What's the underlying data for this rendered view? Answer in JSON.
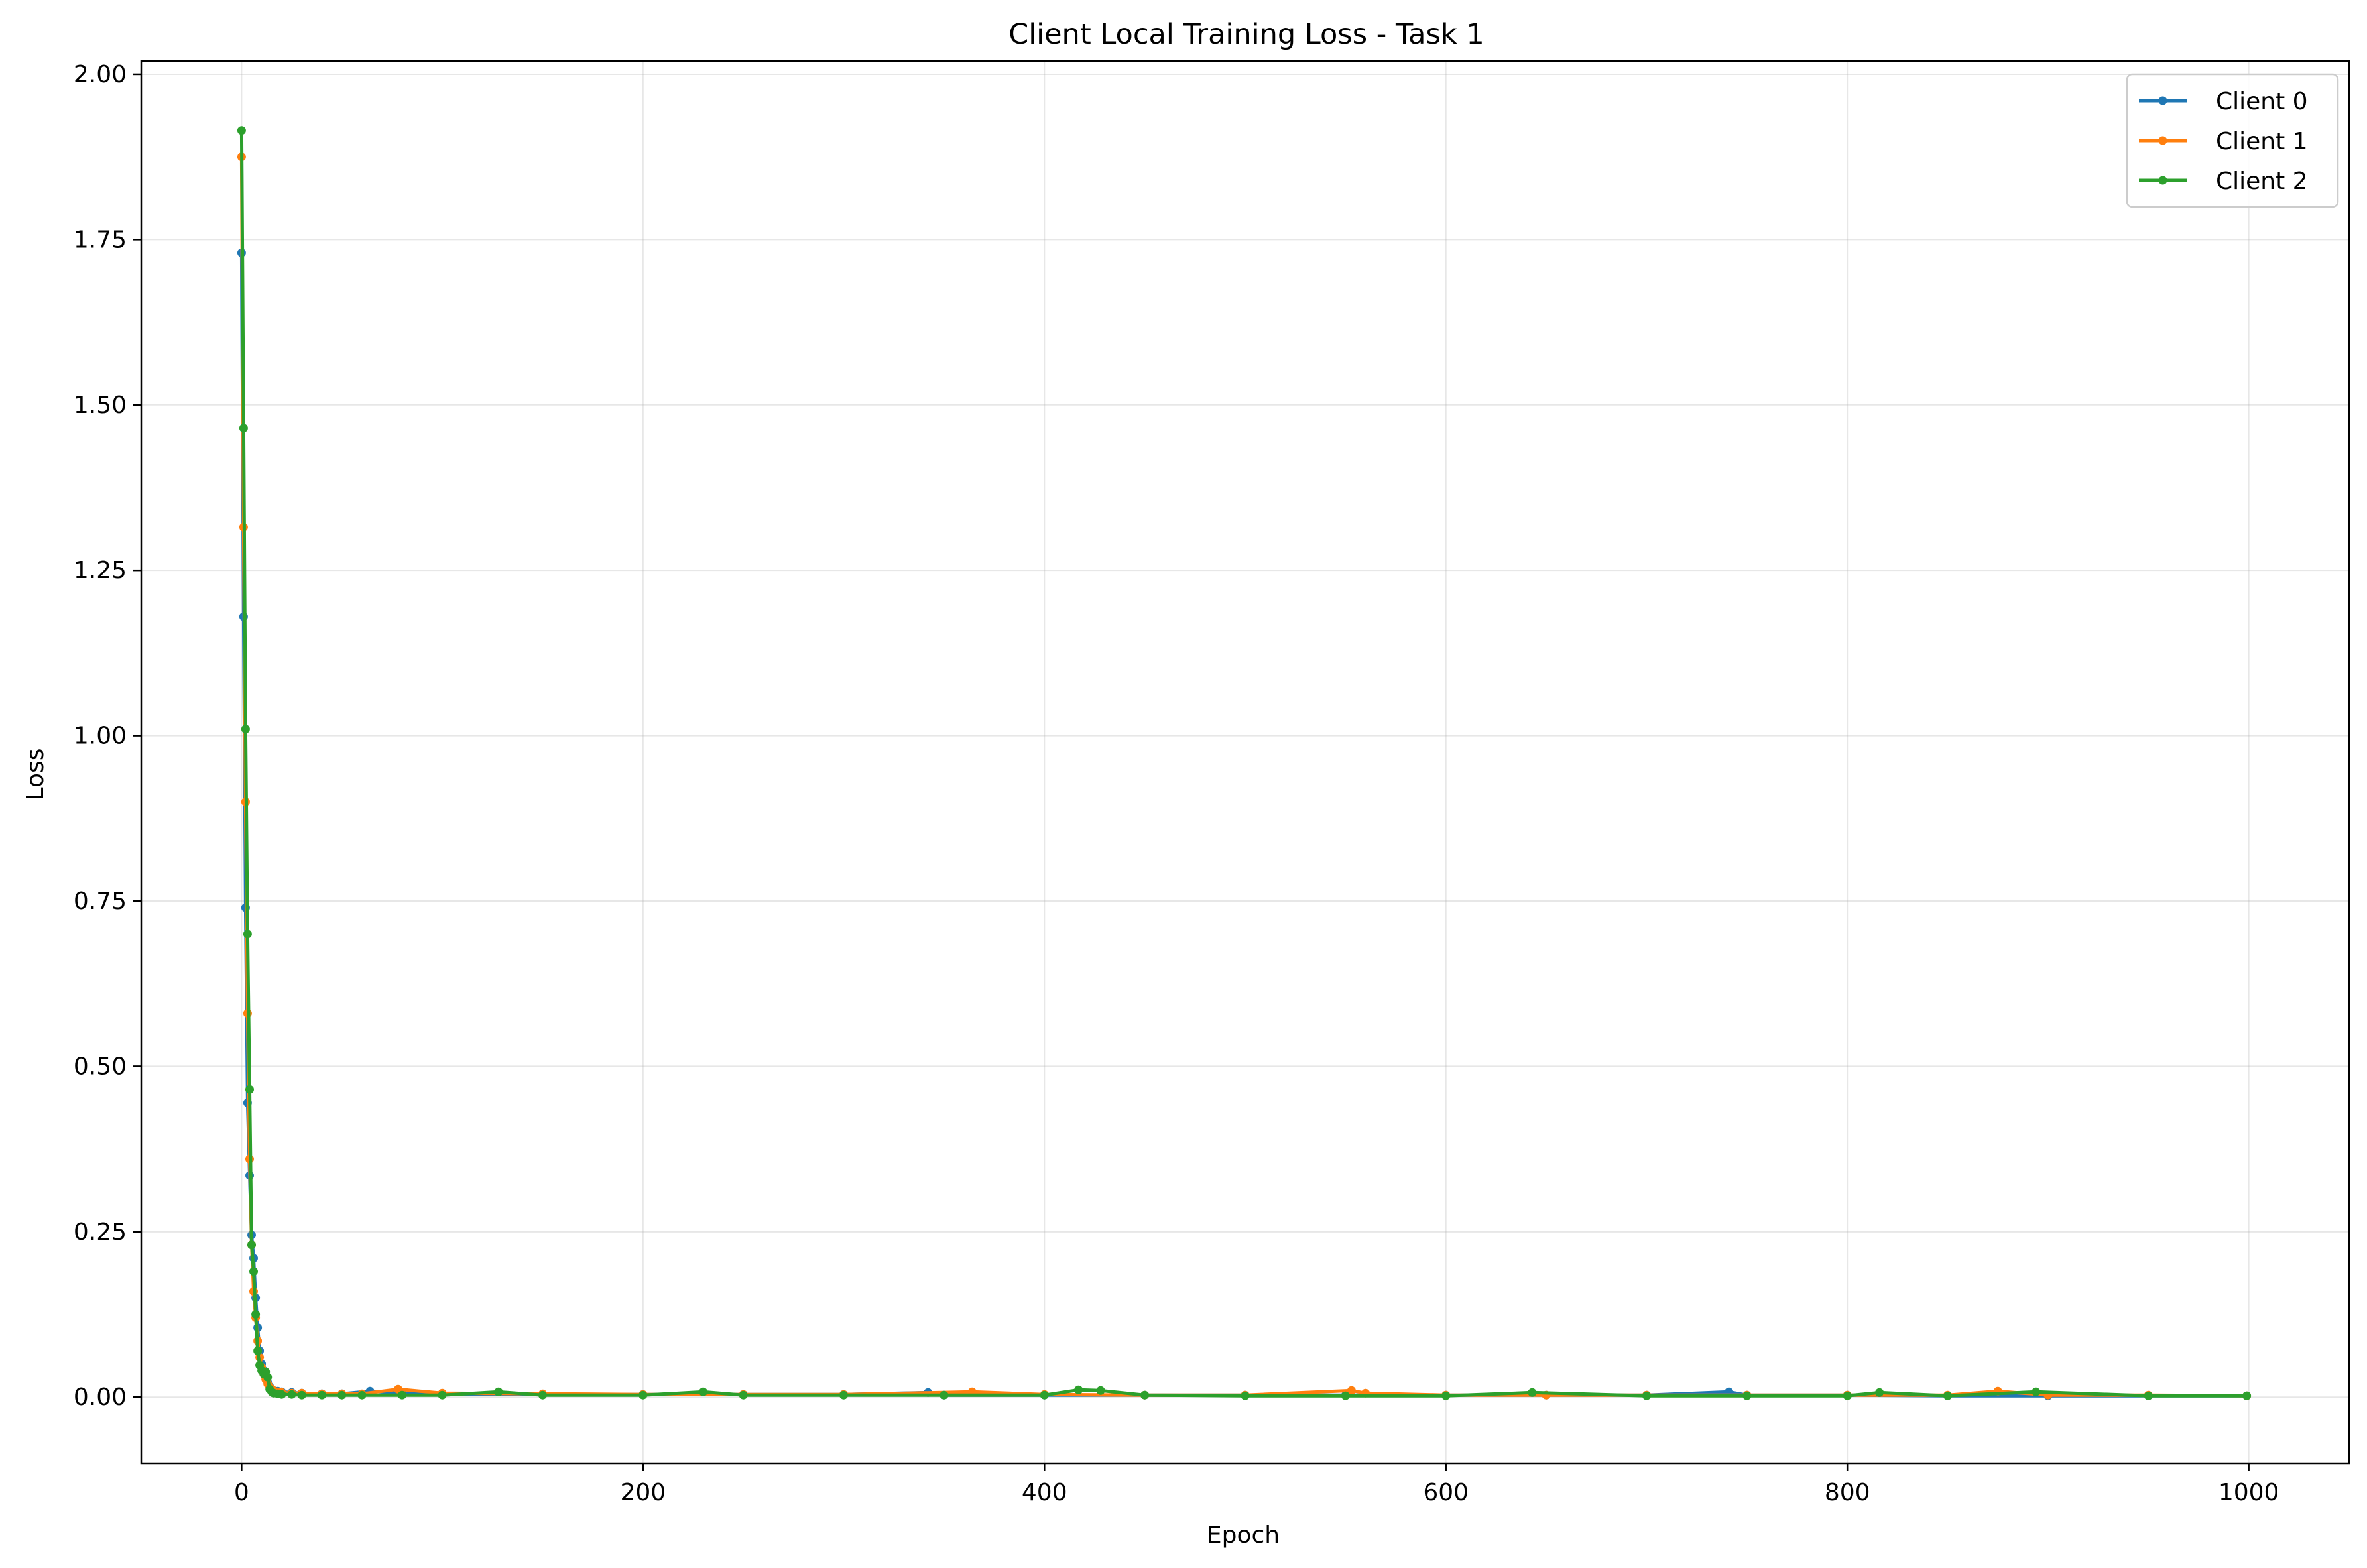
{
  "chart_data": {
    "type": "line",
    "title": "Client Local Training Loss - Task 1",
    "xlabel": "Epoch",
    "ylabel": "Loss",
    "xlim": [
      -50,
      1050
    ],
    "ylim": [
      -0.1,
      2.02
    ],
    "xticks": [
      0,
      200,
      400,
      600,
      800,
      1000
    ],
    "xtick_labels": [
      "0",
      "200",
      "400",
      "600",
      "800",
      "1000"
    ],
    "yticks": [
      0.0,
      0.25,
      0.5,
      0.75,
      1.0,
      1.25,
      1.5,
      1.75,
      2.0
    ],
    "ytick_labels": [
      "0.00",
      "0.25",
      "0.50",
      "0.75",
      "1.00",
      "1.25",
      "1.50",
      "1.75",
      "2.00"
    ],
    "grid": true,
    "legend_position": "top-right",
    "markers": true,
    "series": [
      {
        "name": "Client 0",
        "color": "#1f77b4",
        "x": [
          0,
          1,
          2,
          3,
          4,
          5,
          6,
          7,
          8,
          9,
          10,
          11,
          12,
          13,
          14,
          15,
          16,
          18,
          20,
          25,
          30,
          40,
          50,
          64,
          80,
          100,
          150,
          200,
          250,
          300,
          342,
          350,
          400,
          450,
          500,
          550,
          600,
          650,
          700,
          741,
          750,
          800,
          850,
          900,
          950,
          999
        ],
        "y": [
          1.73,
          1.18,
          0.74,
          0.445,
          0.335,
          0.245,
          0.21,
          0.15,
          0.105,
          0.07,
          0.05,
          0.04,
          0.03,
          0.022,
          0.016,
          0.012,
          0.01,
          0.009,
          0.008,
          0.007,
          0.006,
          0.005,
          0.005,
          0.009,
          0.006,
          0.005,
          0.004,
          0.004,
          0.004,
          0.004,
          0.007,
          0.003,
          0.003,
          0.003,
          0.003,
          0.003,
          0.003,
          0.003,
          0.003,
          0.008,
          0.003,
          0.003,
          0.002,
          0.002,
          0.002,
          0.002
        ]
      },
      {
        "name": "Client 1",
        "color": "#ff7f0e",
        "x": [
          0,
          1,
          2,
          3,
          4,
          5,
          6,
          7,
          8,
          9,
          10,
          11,
          12,
          13,
          14,
          15,
          16,
          18,
          20,
          25,
          30,
          40,
          50,
          60,
          78,
          100,
          150,
          200,
          250,
          300,
          364,
          400,
          450,
          500,
          553,
          560,
          600,
          650,
          700,
          750,
          800,
          850,
          875,
          900,
          950,
          999
        ],
        "y": [
          1.875,
          1.315,
          0.9,
          0.58,
          0.36,
          0.23,
          0.16,
          0.12,
          0.085,
          0.06,
          0.045,
          0.035,
          0.027,
          0.02,
          0.015,
          0.012,
          0.01,
          0.008,
          0.007,
          0.006,
          0.006,
          0.005,
          0.005,
          0.005,
          0.012,
          0.006,
          0.005,
          0.004,
          0.004,
          0.004,
          0.008,
          0.004,
          0.003,
          0.003,
          0.01,
          0.006,
          0.003,
          0.003,
          0.003,
          0.003,
          0.003,
          0.003,
          0.009,
          0.003,
          0.003,
          0.002
        ]
      },
      {
        "name": "Client 2",
        "color": "#2ca02c",
        "x": [
          0,
          1,
          2,
          3,
          4,
          5,
          6,
          7,
          8,
          9,
          10,
          11,
          12,
          13,
          14,
          15,
          16,
          18,
          20,
          25,
          30,
          40,
          50,
          60,
          80,
          100,
          128,
          150,
          200,
          230,
          250,
          300,
          350,
          400,
          417,
          428,
          450,
          500,
          550,
          600,
          643,
          700,
          750,
          800,
          816,
          850,
          894,
          950,
          999
        ],
        "y": [
          1.915,
          1.465,
          1.01,
          0.7,
          0.465,
          0.23,
          0.19,
          0.125,
          0.07,
          0.048,
          0.04,
          0.035,
          0.038,
          0.03,
          0.012,
          0.008,
          0.006,
          0.005,
          0.004,
          0.004,
          0.003,
          0.003,
          0.003,
          0.003,
          0.003,
          0.003,
          0.008,
          0.003,
          0.003,
          0.008,
          0.003,
          0.003,
          0.003,
          0.003,
          0.011,
          0.01,
          0.003,
          0.002,
          0.002,
          0.002,
          0.007,
          0.002,
          0.002,
          0.002,
          0.007,
          0.002,
          0.008,
          0.002,
          0.002
        ]
      }
    ]
  }
}
